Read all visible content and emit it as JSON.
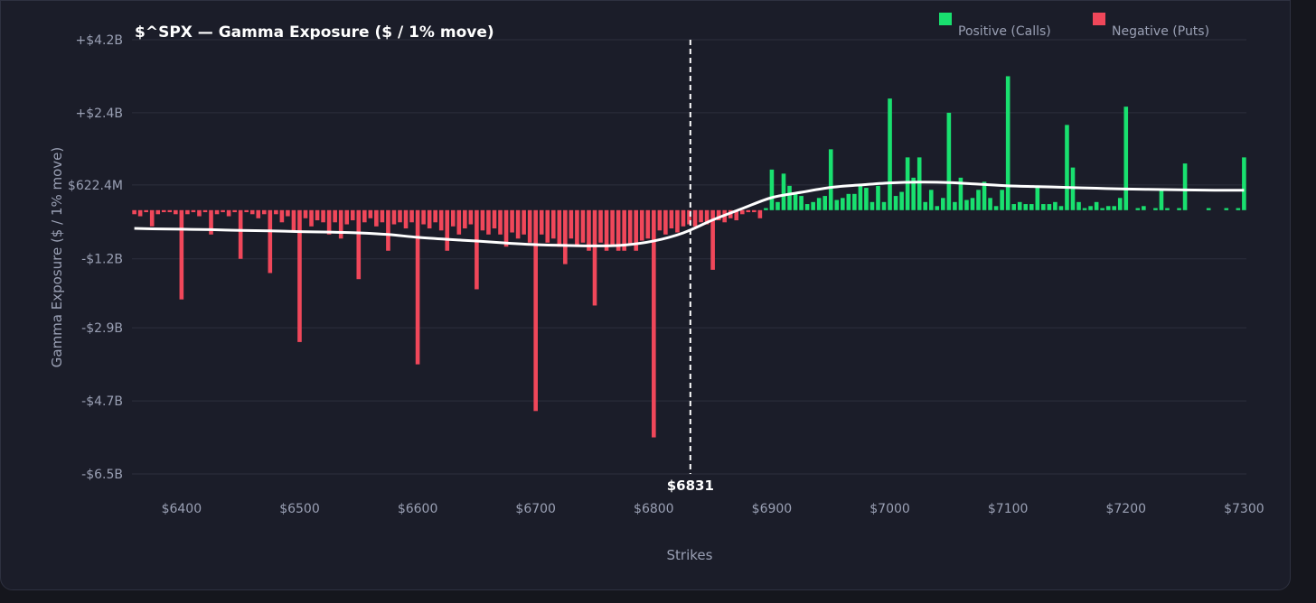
{
  "chart_data": {
    "type": "bar",
    "title": "$^SPX — Gamma Exposure ($ / 1% move)",
    "y_label": "Gamma Exposure ($ / 1% move)",
    "x_label": "Strikes",
    "legend_items": [
      {
        "name": "Positive (Calls)",
        "color": "#19e06f"
      },
      {
        "name": "Negative (Puts)",
        "color": "#f0475a"
      }
    ],
    "x": [
      6360,
      6365,
      6370,
      6375,
      6380,
      6385,
      6390,
      6395,
      6400,
      6405,
      6410,
      6415,
      6420,
      6425,
      6430,
      6435,
      6440,
      6445,
      6450,
      6455,
      6460,
      6465,
      6470,
      6475,
      6480,
      6485,
      6490,
      6495,
      6500,
      6505,
      6510,
      6515,
      6520,
      6525,
      6530,
      6535,
      6540,
      6545,
      6550,
      6555,
      6560,
      6565,
      6570,
      6575,
      6580,
      6585,
      6590,
      6595,
      6600,
      6605,
      6610,
      6615,
      6620,
      6625,
      6630,
      6635,
      6640,
      6645,
      6650,
      6655,
      6660,
      6665,
      6670,
      6675,
      6680,
      6685,
      6690,
      6695,
      6700,
      6705,
      6710,
      6715,
      6720,
      6725,
      6730,
      6735,
      6740,
      6745,
      6750,
      6755,
      6760,
      6765,
      6770,
      6775,
      6780,
      6785,
      6790,
      6795,
      6800,
      6805,
      6810,
      6815,
      6820,
      6825,
      6830,
      6835,
      6840,
      6845,
      6850,
      6855,
      6860,
      6865,
      6870,
      6875,
      6880,
      6885,
      6890,
      6895,
      6900,
      6905,
      6910,
      6915,
      6920,
      6925,
      6930,
      6935,
      6940,
      6945,
      6950,
      6955,
      6960,
      6965,
      6970,
      6975,
      6980,
      6985,
      6990,
      6995,
      7000,
      7005,
      7010,
      7015,
      7020,
      7025,
      7030,
      7035,
      7040,
      7045,
      7050,
      7055,
      7060,
      7065,
      7070,
      7075,
      7080,
      7085,
      7090,
      7095,
      7100,
      7105,
      7110,
      7115,
      7120,
      7125,
      7130,
      7135,
      7140,
      7145,
      7150,
      7155,
      7160,
      7165,
      7170,
      7175,
      7180,
      7185,
      7190,
      7195,
      7200,
      7205,
      7210,
      7215,
      7220,
      7225,
      7230,
      7235,
      7240,
      7245,
      7250,
      7255,
      7260,
      7265,
      7270,
      7275,
      7280,
      7285,
      7290,
      7295,
      7300
    ],
    "values": [
      -0.1,
      -0.15,
      -0.05,
      -0.4,
      -0.1,
      -0.05,
      -0.05,
      -0.1,
      -2.2,
      -0.1,
      -0.05,
      -0.15,
      -0.05,
      -0.6,
      -0.1,
      -0.05,
      -0.15,
      -0.05,
      -1.2,
      -0.05,
      -0.1,
      -0.2,
      -0.1,
      -1.55,
      -0.1,
      -0.3,
      -0.15,
      -0.5,
      -3.25,
      -0.2,
      -0.4,
      -0.25,
      -0.3,
      -0.6,
      -0.3,
      -0.7,
      -0.35,
      -0.25,
      -1.7,
      -0.3,
      -0.2,
      -0.4,
      -0.3,
      -1.0,
      -0.35,
      -0.3,
      -0.45,
      -0.3,
      -3.8,
      -0.35,
      -0.45,
      -0.3,
      -0.5,
      -1.0,
      -0.4,
      -0.6,
      -0.45,
      -0.35,
      -1.95,
      -0.5,
      -0.6,
      -0.45,
      -0.6,
      -0.9,
      -0.55,
      -0.7,
      -0.6,
      -0.8,
      -4.95,
      -0.6,
      -0.8,
      -0.7,
      -0.9,
      -1.33,
      -0.7,
      -0.9,
      -0.8,
      -1.0,
      -2.35,
      -0.8,
      -1.0,
      -0.9,
      -1.0,
      -1.0,
      -0.85,
      -1.0,
      -0.75,
      -0.7,
      -5.6,
      -0.5,
      -0.6,
      -0.45,
      -0.55,
      -0.4,
      -0.35,
      -0.4,
      -0.3,
      -0.35,
      -1.47,
      -0.25,
      -0.3,
      -0.2,
      -0.25,
      -0.1,
      -0.05,
      -0.05,
      -0.2,
      0.05,
      1.0,
      0.2,
      0.9,
      0.6,
      0.4,
      0.35,
      0.15,
      0.2,
      0.3,
      0.35,
      1.5,
      0.25,
      0.3,
      0.4,
      0.4,
      0.65,
      0.55,
      0.2,
      0.6,
      0.2,
      2.75,
      0.35,
      0.45,
      1.3,
      0.8,
      1.3,
      0.2,
      0.5,
      0.1,
      0.3,
      2.4,
      0.2,
      0.8,
      0.25,
      0.3,
      0.5,
      0.7,
      0.3,
      0.1,
      0.5,
      3.3,
      0.15,
      0.2,
      0.15,
      0.15,
      0.6,
      0.15,
      0.15,
      0.2,
      0.1,
      2.1,
      1.05,
      0.2,
      0.05,
      0.1,
      0.2,
      0.05,
      0.1,
      0.1,
      0.3,
      2.55,
      0,
      0.05,
      0.1,
      0,
      0.05,
      0.5,
      0.05,
      0,
      0.05,
      1.15,
      0,
      0,
      0,
      0.05,
      0,
      0,
      0.05,
      0,
      0.05,
      1.3
    ],
    "curve": {
      "color": "#ffffff",
      "x": [
        6360,
        6375,
        6400,
        6425,
        6450,
        6475,
        6500,
        6525,
        6550,
        6575,
        6600,
        6625,
        6650,
        6675,
        6700,
        6725,
        6750,
        6775,
        6800,
        6825,
        6850,
        6875,
        6900,
        6925,
        6950,
        6975,
        7000,
        7025,
        7050,
        7075,
        7100,
        7125,
        7150,
        7175,
        7200,
        7225,
        7250,
        7275,
        7300
      ],
      "values": [
        -0.45,
        -0.46,
        -0.47,
        -0.48,
        -0.5,
        -0.51,
        -0.53,
        -0.54,
        -0.56,
        -0.6,
        -0.67,
        -0.72,
        -0.76,
        -0.81,
        -0.85,
        -0.87,
        -0.88,
        -0.86,
        -0.76,
        -0.56,
        -0.24,
        0.04,
        0.31,
        0.44,
        0.56,
        0.62,
        0.67,
        0.69,
        0.68,
        0.64,
        0.6,
        0.58,
        0.56,
        0.54,
        0.52,
        0.51,
        0.5,
        0.49,
        0.49
      ]
    },
    "spot": 6831,
    "spot_label": "$6831",
    "xlim": [
      6358,
      7302
    ],
    "xticks": [
      {
        "value": 6400,
        "label": "$6400"
      },
      {
        "value": 6500,
        "label": "$6500"
      },
      {
        "value": 6600,
        "label": "$6600"
      },
      {
        "value": 6700,
        "label": "$6700"
      },
      {
        "value": 6800,
        "label": "$6800"
      },
      {
        "value": 6900,
        "label": "$6900"
      },
      {
        "value": 7000,
        "label": "$7000"
      },
      {
        "value": 7100,
        "label": "$7100"
      },
      {
        "value": 7200,
        "label": "$7200"
      },
      {
        "value": 7300,
        "label": "$7300"
      }
    ],
    "ylim": [
      -6.5,
      4.2
    ],
    "yticks": [
      {
        "value": -6.5,
        "label": "-$6.5B"
      },
      {
        "value": -4.7,
        "label": "-$4.7B"
      },
      {
        "value": -2.9,
        "label": "-$2.9B"
      },
      {
        "value": -1.2,
        "label": "-$1.2B"
      },
      {
        "value": 0.6224,
        "label": "$622.4M"
      },
      {
        "value": 2.4,
        "label": "+$2.4B"
      },
      {
        "value": 4.2,
        "label": "+$4.2B"
      }
    ],
    "grid": true
  }
}
